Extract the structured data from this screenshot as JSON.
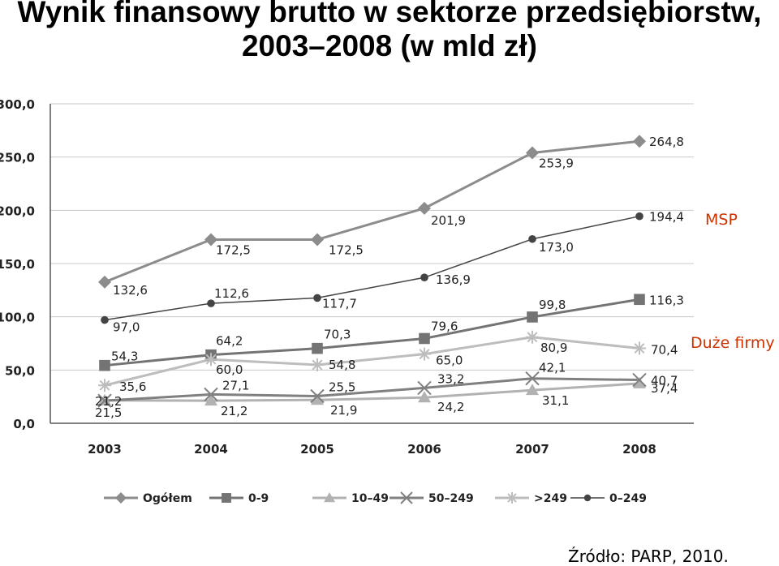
{
  "title_line1": "Wynik finansowy brutto w sektorze przedsiębiorstw,",
  "title_line2": "2003–2008 (w mld zł)",
  "annotations": {
    "msp": "MSP",
    "duze": "Duże firmy"
  },
  "source": "Źródło: PARP, 2010.",
  "colors": {
    "msp_annotation": "#cc3300"
  },
  "chart_data": {
    "type": "line",
    "categories": [
      "2003",
      "2004",
      "2005",
      "2006",
      "2007",
      "2008"
    ],
    "ylim": [
      0,
      300
    ],
    "yticks": [
      "0,0",
      "50,0",
      "100,0",
      "150,0",
      "200,0",
      "250,0",
      "300,0"
    ],
    "grid": true,
    "legend_position": "bottom",
    "series": [
      {
        "name": "Ogółem",
        "marker": "diamond",
        "color": "#8c8c8c",
        "values": [
          132.6,
          172.5,
          172.5,
          201.9,
          253.9,
          264.8
        ],
        "labels": [
          "132,6",
          "172,5",
          "172,5",
          "201,9",
          "253,9",
          "264,8"
        ]
      },
      {
        "name": "0-9",
        "marker": "square",
        "color": "#747474",
        "values": [
          54.3,
          64.2,
          70.3,
          79.6,
          99.8,
          116.3
        ],
        "labels": [
          "54,3",
          "64,2",
          "70,3",
          "79,6",
          "99,8",
          "116,3"
        ]
      },
      {
        "name": "10–49",
        "marker": "triangle",
        "color": "#b2b2b2",
        "values": [
          21.5,
          21.2,
          21.9,
          24.2,
          31.1,
          37.4
        ],
        "labels": [
          "21,5",
          "21,2",
          "21,9",
          "24,2",
          "31,1",
          "37,4"
        ]
      },
      {
        "name": "50–249",
        "marker": "x",
        "color": "#808080",
        "values": [
          21.2,
          27.1,
          25.5,
          33.2,
          42.1,
          40.7
        ],
        "labels": [
          "21,2",
          "27,1",
          "25,5",
          "33,2",
          "42,1",
          "40,7"
        ]
      },
      {
        "name": ">249",
        "marker": "star",
        "color": "#bdbdbd",
        "values": [
          35.6,
          60.0,
          54.8,
          65.0,
          80.9,
          70.4
        ],
        "labels": [
          "35,6",
          "60,0",
          "54,8",
          "65,0",
          "80,9",
          "70,4"
        ]
      },
      {
        "name": "0–249",
        "marker": "circle",
        "color": "#444444",
        "values": [
          97.0,
          112.6,
          117.7,
          136.9,
          173.0,
          194.4
        ],
        "labels": [
          "97,0",
          "112,6",
          "117,7",
          "136,9",
          "173,0",
          "194,4"
        ]
      }
    ]
  }
}
